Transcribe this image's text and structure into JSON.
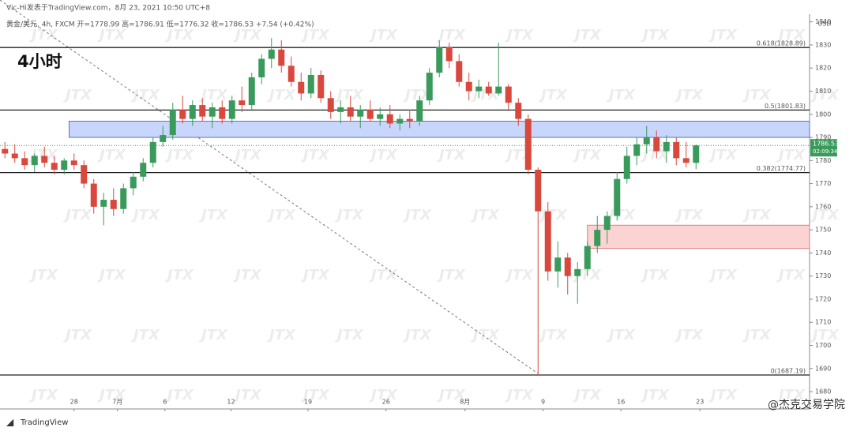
{
  "header": {
    "byline": "Vic-Hi发表于TradingView.com，8月 23, 2021 10:50 UTC+8",
    "info": "黄金/美元, 4h, FXCM  开=1778.99 高=1786.91 低=1776.32 收=1786.53 +7.54 (+0.42%)",
    "timeframe": "4小时"
  },
  "footer": {
    "brand": "TradingView",
    "credit": "@杰克交易学院"
  },
  "watermark": "JTX",
  "chart_data": {
    "type": "candlestick",
    "currency": "USD",
    "up_color": "#3a9a5c",
    "down_color": "#d9483c",
    "ylim": [
      1678.65,
      1843.3
    ],
    "yticks": [
      1680,
      1690,
      1700,
      1710,
      1720,
      1730,
      1740,
      1750,
      1760,
      1770,
      1780,
      1790,
      1800,
      1810,
      1820,
      1830,
      1840
    ],
    "xlim": [
      -0.5,
      81.5
    ],
    "xticks": [
      {
        "value": 7,
        "label": "28"
      },
      {
        "value": 11.4,
        "label": "7月"
      },
      {
        "value": 16.2,
        "label": "6"
      },
      {
        "value": 22.9,
        "label": "12"
      },
      {
        "value": 30.7,
        "label": "19"
      },
      {
        "value": 38.6,
        "label": "26"
      },
      {
        "value": 46.6,
        "label": "8月"
      },
      {
        "value": 54.5,
        "label": "9"
      },
      {
        "value": 62.4,
        "label": "16"
      },
      {
        "value": 70.4,
        "label": "23"
      }
    ],
    "ohlc": [
      [
        1785,
        1788,
        1781,
        1783
      ],
      [
        1783,
        1787,
        1779,
        1781
      ],
      [
        1781,
        1784,
        1776,
        1778
      ],
      [
        1778,
        1783,
        1775,
        1782
      ],
      [
        1782,
        1786,
        1777,
        1779
      ],
      [
        1779,
        1782,
        1774,
        1776
      ],
      [
        1776,
        1781,
        1774,
        1780
      ],
      [
        1780,
        1783,
        1776,
        1778
      ],
      [
        1778,
        1780,
        1768,
        1770
      ],
      [
        1770,
        1772,
        1757,
        1760
      ],
      [
        1760,
        1766,
        1752,
        1763
      ],
      [
        1763,
        1768,
        1756,
        1759
      ],
      [
        1759,
        1770,
        1757,
        1768
      ],
      [
        1768,
        1775,
        1765,
        1773
      ],
      [
        1773,
        1781,
        1771,
        1779
      ],
      [
        1779,
        1790,
        1777,
        1788
      ],
      [
        1788,
        1795,
        1786,
        1791
      ],
      [
        1791,
        1805,
        1789,
        1802
      ],
      [
        1802,
        1808,
        1796,
        1798
      ],
      [
        1798,
        1806,
        1795,
        1804
      ],
      [
        1804,
        1807,
        1797,
        1799
      ],
      [
        1799,
        1805,
        1794,
        1803
      ],
      [
        1803,
        1806,
        1796,
        1798
      ],
      [
        1798,
        1808,
        1796,
        1806
      ],
      [
        1806,
        1812,
        1801,
        1804
      ],
      [
        1804,
        1818,
        1802,
        1816
      ],
      [
        1816,
        1826,
        1813,
        1824
      ],
      [
        1824,
        1833,
        1820,
        1828
      ],
      [
        1828,
        1832,
        1818,
        1821
      ],
      [
        1821,
        1825,
        1812,
        1814
      ],
      [
        1814,
        1818,
        1806,
        1809
      ],
      [
        1809,
        1820,
        1807,
        1817
      ],
      [
        1817,
        1819,
        1805,
        1807
      ],
      [
        1807,
        1810,
        1798,
        1801
      ],
      [
        1801,
        1806,
        1796,
        1803
      ],
      [
        1803,
        1808,
        1797,
        1799
      ],
      [
        1799,
        1804,
        1794,
        1802
      ],
      [
        1802,
        1806,
        1797,
        1798
      ],
      [
        1798,
        1803,
        1795,
        1800
      ],
      [
        1800,
        1804,
        1794,
        1796
      ],
      [
        1796,
        1800,
        1793,
        1798
      ],
      [
        1798,
        1802,
        1794,
        1797
      ],
      [
        1797,
        1808,
        1795,
        1806
      ],
      [
        1806,
        1820,
        1804,
        1818
      ],
      [
        1818,
        1832,
        1816,
        1829
      ],
      [
        1829,
        1831,
        1820,
        1823
      ],
      [
        1823,
        1826,
        1812,
        1814
      ],
      [
        1814,
        1818,
        1806,
        1810
      ],
      [
        1810,
        1815,
        1807,
        1812
      ],
      [
        1812,
        1814,
        1808,
        1809
      ],
      [
        1809,
        1831,
        1808,
        1812
      ],
      [
        1812,
        1813,
        1802,
        1805
      ],
      [
        1805,
        1807,
        1795,
        1798
      ],
      [
        1798,
        1800,
        1774,
        1776
      ],
      [
        1776,
        1777,
        1687.19,
        1758
      ],
      [
        1758,
        1762,
        1728,
        1732
      ],
      [
        1732,
        1745,
        1725,
        1738
      ],
      [
        1738,
        1740,
        1722,
        1730
      ],
      [
        1730,
        1736,
        1718,
        1733
      ],
      [
        1733,
        1745,
        1730,
        1743
      ],
      [
        1743,
        1756,
        1740,
        1750
      ],
      [
        1750,
        1758,
        1744,
        1756
      ],
      [
        1756,
        1775,
        1754,
        1772
      ],
      [
        1772,
        1786,
        1770,
        1782
      ],
      [
        1782,
        1790,
        1778,
        1787
      ],
      [
        1787,
        1795,
        1783,
        1790
      ],
      [
        1790,
        1793,
        1781,
        1784
      ],
      [
        1784,
        1791,
        1779,
        1788
      ],
      [
        1788,
        1790,
        1778,
        1781
      ],
      [
        1781,
        1788,
        1777,
        1779
      ],
      [
        1778.99,
        1786.91,
        1776.32,
        1786.53
      ]
    ],
    "levels": [
      {
        "value": 1828.89,
        "label": "0.618(1828.89)"
      },
      {
        "value": 1801.83,
        "label": "0.5(1801.83)"
      },
      {
        "value": 1774.77,
        "label": "0.382(1774.77)"
      },
      {
        "value": 1687.19,
        "label": "0(1687.19)"
      }
    ],
    "zones": [
      {
        "from": 1790,
        "to": 1797,
        "x_start": 6.5,
        "color": "#c9d6fb",
        "border": "#5b6fd6"
      },
      {
        "from": 1742,
        "to": 1752,
        "x_start": 59,
        "color": "#fbd3d3",
        "border": "#e08080"
      }
    ],
    "countdown": "02:09:34"
  }
}
